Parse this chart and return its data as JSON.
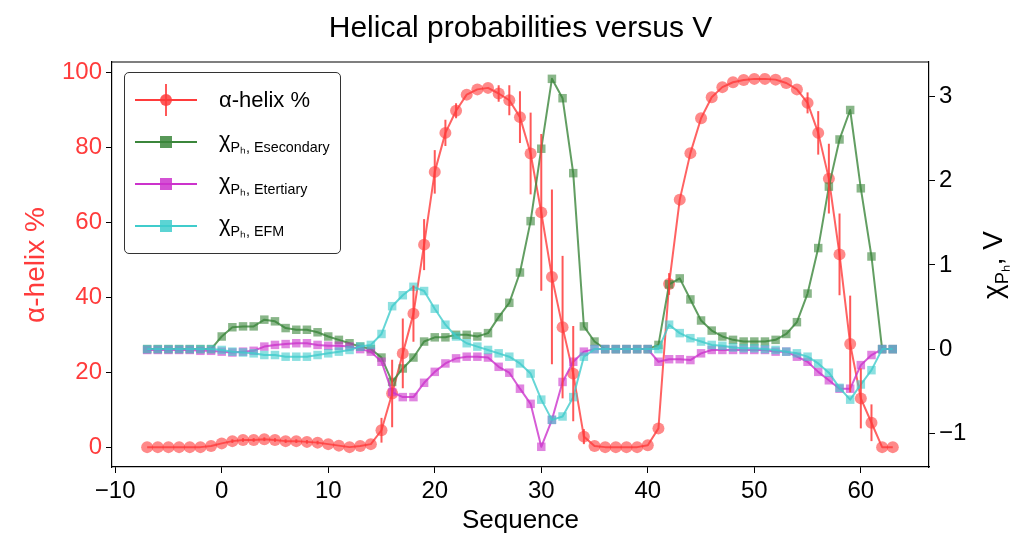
{
  "chart_data": {
    "type": "line",
    "title": "Helical probabilities versus V",
    "xlabel": "Sequence",
    "ylabel": "α-helix %",
    "y2label": "χ$_{Pₕ}$, V",
    "x": [
      -7,
      -6,
      -5,
      -4,
      -3,
      -2,
      -1,
      0,
      1,
      2,
      3,
      4,
      5,
      6,
      7,
      8,
      9,
      10,
      11,
      12,
      13,
      14,
      15,
      16,
      17,
      18,
      19,
      20,
      21,
      22,
      23,
      24,
      25,
      26,
      27,
      28,
      29,
      30,
      31,
      32,
      33,
      34,
      35,
      36,
      37,
      38,
      39,
      40,
      41,
      42,
      43,
      44,
      45,
      46,
      47,
      48,
      49,
      50,
      51,
      52,
      53,
      54,
      55,
      56,
      57,
      58,
      59,
      60,
      61,
      62,
      63
    ],
    "series": [
      {
        "name": "α-helix %",
        "color": "#ff3b3b",
        "marker": "circle",
        "values": [
          0,
          0,
          0,
          0,
          0,
          0,
          0.3,
          1,
          1.6,
          1.9,
          1.9,
          2.1,
          1.9,
          1.6,
          1.6,
          1.4,
          1.2,
          0.8,
          0.4,
          0,
          0.3,
          0.8,
          4.5,
          14.3,
          25,
          35.6,
          54,
          73.4,
          83.8,
          89.7,
          94,
          95.4,
          95.8,
          94.3,
          92.5,
          88,
          78.3,
          62.6,
          45.4,
          32,
          19.6,
          2.8,
          0.3,
          0,
          0,
          0,
          0,
          0.5,
          5,
          43.5,
          66,
          78.4,
          87.7,
          93.3,
          96,
          97.3,
          97.9,
          98.2,
          98.2,
          98,
          97.1,
          95.4,
          91.8,
          83.8,
          71.6,
          51.4,
          27.5,
          13,
          6.5,
          0,
          0
        ],
        "errors": [
          null,
          null,
          null,
          null,
          null,
          null,
          null,
          null,
          0.5,
          0.5,
          0.5,
          0.5,
          0.5,
          0.5,
          0.5,
          0.5,
          0.5,
          null,
          null,
          null,
          null,
          null,
          3.3,
          9,
          9.3,
          7.5,
          6.8,
          5.8,
          3.5,
          2,
          null,
          null,
          null,
          2.2,
          4,
          6.9,
          10.9,
          20.9,
          23.3,
          19,
          12.7,
          2,
          null,
          null,
          null,
          null,
          null,
          null,
          null,
          2.9,
          null,
          null,
          null,
          null,
          null,
          null,
          null,
          null,
          null,
          null,
          null,
          null,
          2.8,
          5.8,
          9.3,
          10.9,
          12.9,
          8,
          4.9,
          null,
          null
        ]
      },
      {
        "name": "χ$_{Pₕ, E}$$_{secondary}$",
        "color": "#3b863b",
        "marker": "square",
        "axis": "y2",
        "values": [
          0,
          0,
          0,
          0,
          0,
          0,
          0,
          0.15,
          0.26,
          0.27,
          0.27,
          0.35,
          0.33,
          0.25,
          0.23,
          0.23,
          0.2,
          0.15,
          0.11,
          0.07,
          0.03,
          0,
          -0.1,
          -0.39,
          -0.23,
          -0.1,
          0.09,
          0.14,
          0.14,
          0.17,
          0.17,
          0.15,
          0.19,
          0.38,
          0.55,
          0.91,
          1.52,
          2.38,
          3.21,
          2.98,
          2.09,
          0.27,
          0.09,
          0,
          0,
          0,
          0,
          0,
          0.05,
          0.77,
          0.84,
          0.59,
          0.34,
          0.22,
          0.15,
          0.11,
          0.09,
          0.09,
          0.09,
          0.11,
          0.18,
          0.32,
          0.66,
          1.2,
          1.93,
          2.49,
          2.84,
          1.91,
          1.1,
          0,
          0
        ]
      },
      {
        "name": "χ$_{Pₕ, E}$$_{tertiary}$",
        "color": "#cc33cc",
        "marker": "square",
        "axis": "y2",
        "values": [
          -0.01,
          -0.01,
          -0.01,
          -0.01,
          -0.01,
          -0.02,
          -0.02,
          -0.03,
          -0.04,
          -0.03,
          -0.02,
          0.03,
          0.05,
          0.06,
          0.07,
          0.07,
          0.05,
          0.04,
          0.04,
          0.03,
          0,
          -0.03,
          -0.15,
          -0.51,
          -0.57,
          -0.57,
          -0.4,
          -0.27,
          -0.17,
          -0.11,
          -0.09,
          -0.09,
          -0.1,
          -0.21,
          -0.28,
          -0.47,
          -0.65,
          -1.16,
          -0.84,
          -0.39,
          -0.15,
          -0.03,
          0,
          0,
          0,
          0,
          0,
          0,
          -0.15,
          -0.12,
          -0.12,
          -0.13,
          -0.05,
          -0.01,
          -0.01,
          -0.01,
          -0.01,
          -0.01,
          -0.01,
          -0.03,
          -0.03,
          -0.09,
          -0.15,
          -0.27,
          -0.37,
          -0.47,
          -0.47,
          -0.19,
          -0.07,
          0,
          0
        ]
      },
      {
        "name": "χ$_{Pₕ, E}$$_{FM}$",
        "color": "#40cccc",
        "marker": "square",
        "axis": "y2",
        "values": [
          0,
          0,
          0,
          0,
          0,
          0,
          0,
          -0.01,
          -0.03,
          -0.04,
          -0.05,
          -0.07,
          -0.07,
          -0.09,
          -0.09,
          -0.09,
          -0.07,
          -0.05,
          -0.03,
          -0.01,
          0.03,
          0.05,
          0.18,
          0.51,
          0.64,
          0.74,
          0.69,
          0.48,
          0.29,
          0.15,
          0.07,
          0.03,
          -0.01,
          -0.05,
          -0.09,
          -0.17,
          -0.29,
          -0.6,
          -0.84,
          -0.8,
          -0.57,
          -0.09,
          0,
          0,
          0,
          0,
          0,
          0,
          0,
          0.29,
          0.19,
          0.13,
          0.09,
          0.05,
          0.04,
          0.02,
          0.01,
          0.01,
          0,
          -0.01,
          -0.03,
          -0.05,
          -0.09,
          -0.17,
          -0.28,
          -0.46,
          -0.6,
          -0.42,
          -0.25,
          0,
          0
        ]
      }
    ],
    "xlim": [
      -10.3,
      66.4
    ],
    "xticks": [
      {
        "value": -10,
        "label": "−10"
      },
      0,
      10,
      20,
      30,
      40,
      50,
      60
    ],
    "ylim": [
      -5.3,
      102.7
    ],
    "yticks": [
      0,
      20,
      40,
      60,
      80,
      100
    ],
    "y2lim": [
      -1.4,
      3.41
    ],
    "y2ticks": [
      {
        "value": -1,
        "label": "−1"
      },
      0,
      1,
      2,
      3
    ],
    "legend": "top left",
    "grid": false,
    "line_style": "solid"
  }
}
